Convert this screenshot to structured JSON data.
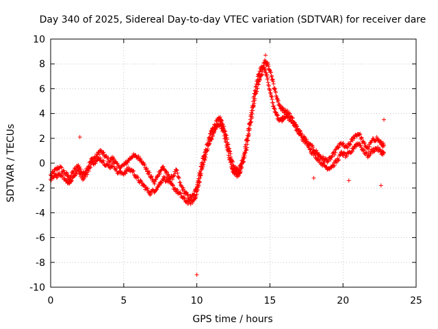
{
  "chart_data": {
    "type": "scatter",
    "title": "Day 340 of 2025, Sidereal Day-to-day VTEC variation (SDTVAR) for receiver dare",
    "xlabel": "GPS time / hours",
    "ylabel": "SDTVAR / TECUs",
    "xlim": [
      0,
      25
    ],
    "ylim": [
      -10,
      10
    ],
    "xticks": [
      0,
      5,
      10,
      15,
      20,
      25
    ],
    "yticks": [
      -10,
      -8,
      -6,
      -4,
      -2,
      0,
      2,
      4,
      6,
      8,
      10
    ],
    "grid": true,
    "marker": "+",
    "series_color": "#ff0000",
    "series": [
      {
        "name": "SDTVAR",
        "trace_a": {
          "x": [
            0.0,
            0.3,
            0.6,
            1.0,
            1.3,
            1.6,
            1.9,
            2.2,
            2.5,
            2.8,
            3.1,
            3.4,
            3.7,
            4.0,
            4.3,
            4.6,
            5.0,
            5.3,
            5.6,
            5.9,
            6.2,
            6.5,
            6.8,
            7.1,
            7.4,
            7.7,
            8.0,
            8.3,
            8.6,
            8.9,
            9.2,
            9.5,
            9.8,
            10.0,
            10.2,
            10.4,
            10.6,
            10.8,
            11.0,
            11.2,
            11.4,
            11.6,
            11.8,
            12.0,
            12.2,
            12.4,
            12.6,
            12.8,
            13.0,
            13.2,
            13.4,
            13.6,
            13.8,
            14.0,
            14.2,
            14.4,
            14.6,
            14.8,
            15.0,
            15.2,
            15.4,
            15.6,
            15.8,
            16.0,
            16.3,
            16.6,
            16.9,
            17.2,
            17.5,
            17.8,
            18.1,
            18.4,
            18.7,
            19.0,
            19.3,
            19.6,
            19.9,
            20.2,
            20.5,
            20.8,
            21.1,
            21.4,
            21.7,
            22.0,
            22.3,
            22.6,
            22.8
          ],
          "y": [
            -1.0,
            -0.6,
            -0.3,
            -0.8,
            -1.2,
            -0.6,
            -0.2,
            -0.9,
            -0.4,
            0.3,
            0.5,
            1.0,
            0.6,
            0.2,
            0.4,
            -0.3,
            -0.2,
            0.2,
            0.6,
            0.5,
            0.3,
            -0.4,
            -1.0,
            -1.6,
            -0.8,
            -0.3,
            -1.0,
            -1.2,
            -0.6,
            -1.8,
            -2.4,
            -2.8,
            -2.6,
            -1.8,
            -0.8,
            0.3,
            1.0,
            1.8,
            2.6,
            3.0,
            3.4,
            3.6,
            3.0,
            2.2,
            1.2,
            0.2,
            -0.4,
            -0.6,
            -0.2,
            0.6,
            1.8,
            3.2,
            4.6,
            6.0,
            7.0,
            7.6,
            7.8,
            7.0,
            5.8,
            4.8,
            4.0,
            3.6,
            3.5,
            3.8,
            3.6,
            3.2,
            2.6,
            2.0,
            1.6,
            1.4,
            1.0,
            0.6,
            0.3,
            0.2,
            0.6,
            1.2,
            1.6,
            1.2,
            1.6,
            2.2,
            2.4,
            1.6,
            1.2,
            1.8,
            2.0,
            1.6,
            1.4
          ]
        },
        "trace_b": {
          "x": [
            0.0,
            0.3,
            0.6,
            1.0,
            1.3,
            1.6,
            1.9,
            2.2,
            2.5,
            2.8,
            3.1,
            3.4,
            3.7,
            4.0,
            4.3,
            4.6,
            5.0,
            5.3,
            5.6,
            5.9,
            6.2,
            6.5,
            6.8,
            7.1,
            7.4,
            7.7,
            8.0,
            8.3,
            8.6,
            8.9,
            9.2,
            9.5,
            9.8,
            10.0,
            10.2,
            10.4,
            10.6,
            10.8,
            11.0,
            11.2,
            11.4,
            11.6,
            11.8,
            12.0,
            12.2,
            12.4,
            12.6,
            12.8,
            13.0,
            13.2,
            13.4,
            13.6,
            13.8,
            14.0,
            14.2,
            14.4,
            14.6,
            14.8,
            15.0,
            15.2,
            15.4,
            15.6,
            15.8,
            16.0,
            16.3,
            16.6,
            16.9,
            17.2,
            17.5,
            17.8,
            18.1,
            18.4,
            18.7,
            19.0,
            19.3,
            19.6,
            19.9,
            20.2,
            20.5,
            20.8,
            21.1,
            21.4,
            21.7,
            22.0,
            22.3,
            22.6,
            22.8
          ],
          "y": [
            -1.4,
            -1.1,
            -0.8,
            -1.3,
            -1.6,
            -1.0,
            -0.6,
            -1.2,
            -0.8,
            0.0,
            0.1,
            0.4,
            0.0,
            -0.3,
            -0.1,
            -0.8,
            -0.8,
            -0.5,
            -0.6,
            -1.2,
            -1.6,
            -2.0,
            -2.4,
            -2.2,
            -1.8,
            -1.2,
            -1.4,
            -1.8,
            -2.2,
            -2.6,
            -3.0,
            -3.2,
            -3.0,
            -2.4,
            -1.4,
            -0.2,
            0.6,
            1.4,
            2.0,
            2.6,
            3.0,
            3.2,
            2.6,
            1.6,
            0.6,
            -0.4,
            -0.8,
            -1.0,
            -0.6,
            0.2,
            1.2,
            2.6,
            4.0,
            5.4,
            6.4,
            7.0,
            8.2,
            8.0,
            7.6,
            6.6,
            5.6,
            4.8,
            4.4,
            4.2,
            4.0,
            3.4,
            2.8,
            2.2,
            1.8,
            1.0,
            0.6,
            0.2,
            -0.2,
            -0.4,
            -0.2,
            0.2,
            0.8,
            0.6,
            0.8,
            1.4,
            1.6,
            1.0,
            0.6,
            1.0,
            1.2,
            0.9,
            0.8
          ]
        },
        "outliers": [
          {
            "x": 2.0,
            "y": 2.1
          },
          {
            "x": 10.0,
            "y": -9.0
          },
          {
            "x": 14.7,
            "y": 8.7
          },
          {
            "x": 18.0,
            "y": -1.2
          },
          {
            "x": 20.4,
            "y": -1.4
          },
          {
            "x": 22.6,
            "y": -1.8
          },
          {
            "x": 22.8,
            "y": 3.5
          }
        ]
      }
    ]
  }
}
